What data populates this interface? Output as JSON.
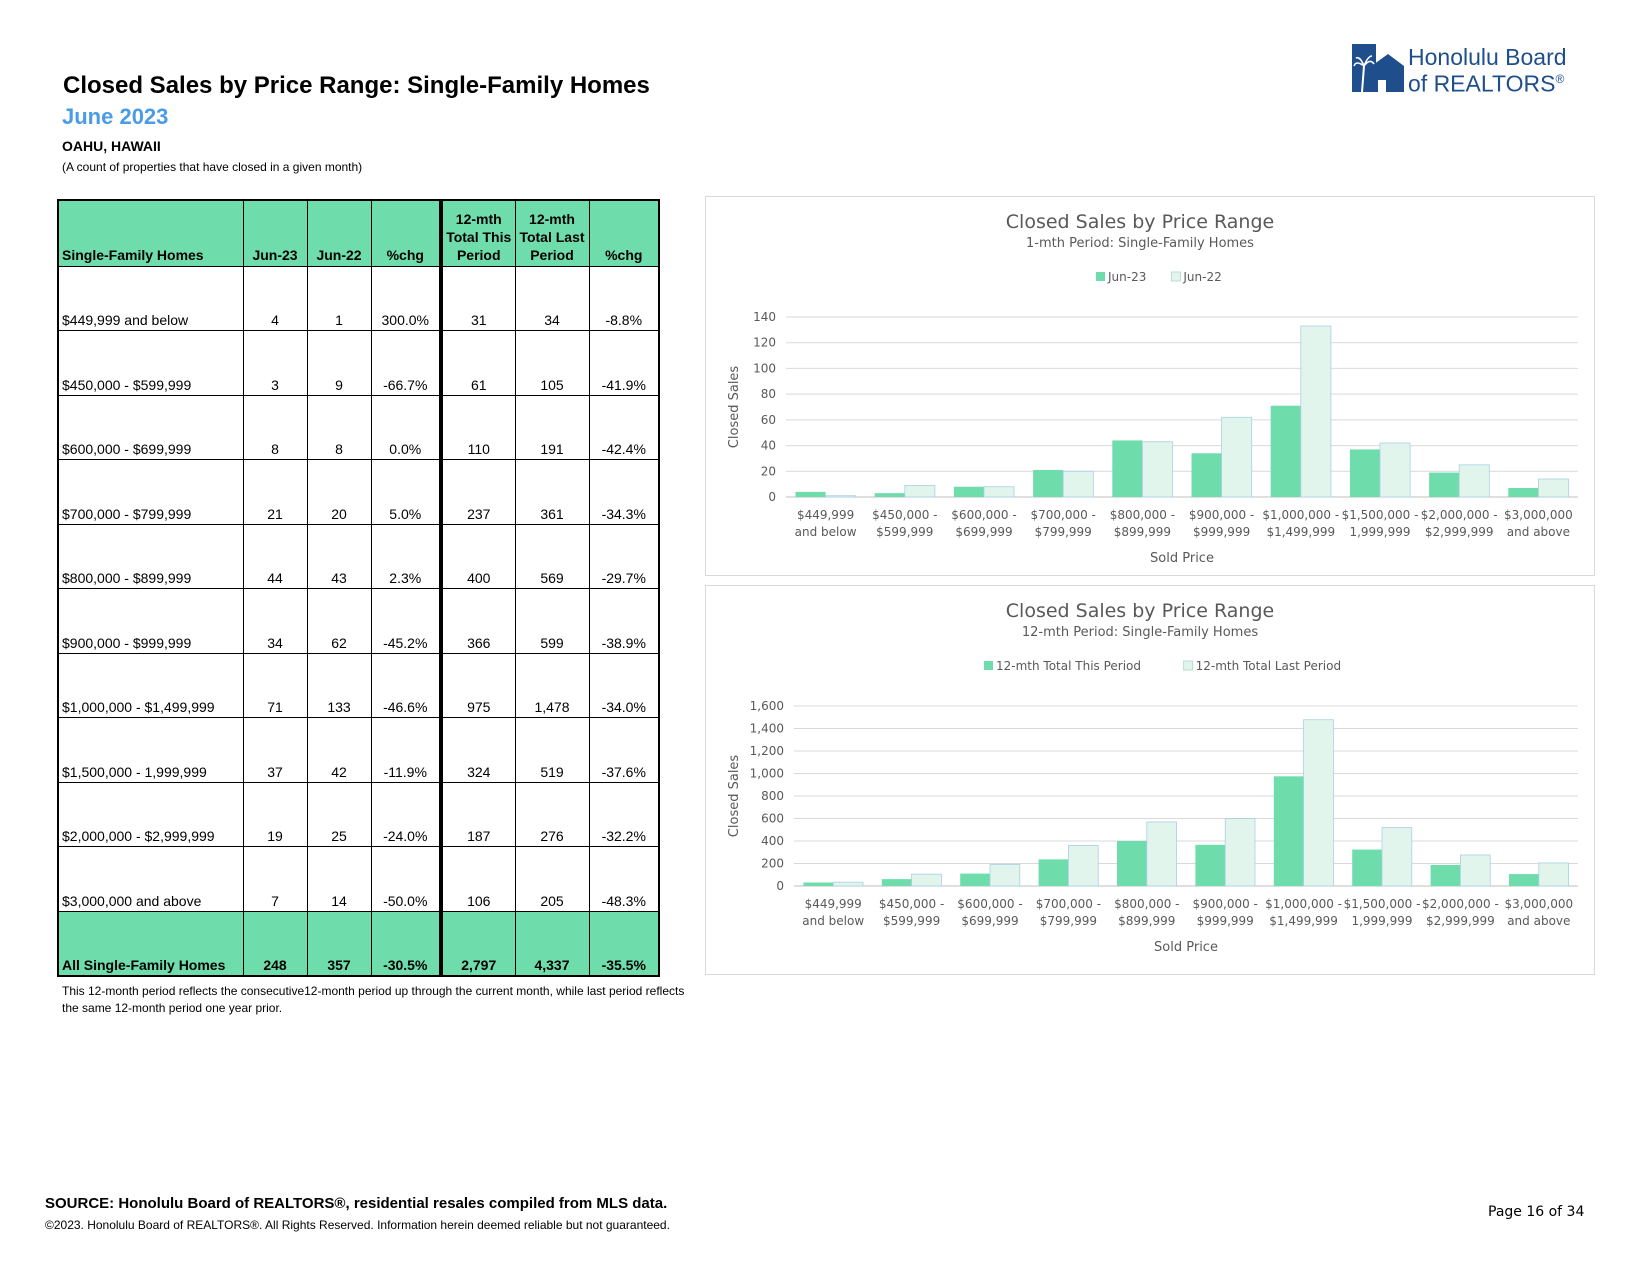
{
  "header": {
    "title": "Closed Sales by Price Range: Single-Family Homes",
    "month": "June 2023",
    "region": "OAHU, HAWAII",
    "note": "(A count of properties that have closed in a given month)"
  },
  "logo": {
    "line1": "Honolulu Board",
    "line2": "of REALTORS",
    "mark": "®"
  },
  "table": {
    "headers": [
      "Single-Family Homes",
      "Jun-23",
      "Jun-22",
      "%chg",
      "12-mth Total This Period",
      "12-mth Total Last Period",
      "%chg"
    ],
    "header_lines": [
      [
        "Single-Family Homes"
      ],
      [
        "Jun-23"
      ],
      [
        "Jun-22"
      ],
      [
        "%chg"
      ],
      [
        "12-mth",
        "Total This",
        "Period"
      ],
      [
        "12-mth",
        "Total Last",
        "Period"
      ],
      [
        "%chg"
      ]
    ],
    "rows": [
      [
        "$449,999 and below",
        "4",
        "1",
        "300.0%",
        "31",
        "34",
        "-8.8%"
      ],
      [
        "$450,000 - $599,999",
        "3",
        "9",
        "-66.7%",
        "61",
        "105",
        "-41.9%"
      ],
      [
        "$600,000 - $699,999",
        "8",
        "8",
        "0.0%",
        "110",
        "191",
        "-42.4%"
      ],
      [
        "$700,000 - $799,999",
        "21",
        "20",
        "5.0%",
        "237",
        "361",
        "-34.3%"
      ],
      [
        "$800,000 - $899,999",
        "44",
        "43",
        "2.3%",
        "400",
        "569",
        "-29.7%"
      ],
      [
        "$900,000 - $999,999",
        "34",
        "62",
        "-45.2%",
        "366",
        "599",
        "-38.9%"
      ],
      [
        "$1,000,000 - $1,499,999",
        "71",
        "133",
        "-46.6%",
        "975",
        "1,478",
        "-34.0%"
      ],
      [
        "$1,500,000 - 1,999,999",
        "37",
        "42",
        "-11.9%",
        "324",
        "519",
        "-37.6%"
      ],
      [
        "$2,000,000 - $2,999,999",
        "19",
        "25",
        "-24.0%",
        "187",
        "276",
        "-32.2%"
      ],
      [
        "$3,000,000 and above",
        "7",
        "14",
        "-50.0%",
        "106",
        "205",
        "-48.3%"
      ]
    ],
    "total": [
      "All Single-Family Homes",
      "248",
      "357",
      "-30.5%",
      "2,797",
      "4,337",
      "-35.5%"
    ]
  },
  "footnote": "This 12-month period reflects the consecutive12-month period up through the current month, while last period reflects the same 12-month period one year prior.",
  "chart_data": [
    {
      "type": "bar",
      "title": "Closed Sales by Price Range",
      "subtitle": "1-mth Period: Single-Family Homes",
      "xlabel": "Sold Price",
      "ylabel": "Closed Sales",
      "ylim": [
        0,
        140
      ],
      "yticks": [
        0,
        20,
        40,
        60,
        80,
        100,
        120,
        140
      ],
      "ytick_labels": [
        "0",
        "20",
        "40",
        "60",
        "80",
        "100",
        "120",
        "140"
      ],
      "legend": "top",
      "grid": true,
      "categories": [
        [
          "$449,999",
          "and below"
        ],
        [
          "$450,000 -",
          "$599,999"
        ],
        [
          "$600,000 -",
          "$699,999"
        ],
        [
          "$700,000 -",
          "$799,999"
        ],
        [
          "$800,000 -",
          "$899,999"
        ],
        [
          "$900,000 -",
          "$999,999"
        ],
        [
          "$1,000,000 -",
          "$1,499,999"
        ],
        [
          "$1,500,000 -",
          "1,999,999"
        ],
        [
          "$2,000,000 -",
          "$2,999,999"
        ],
        [
          "$3,000,000",
          "and above"
        ]
      ],
      "series": [
        {
          "name": "Jun-23",
          "color": "#6fdcac",
          "values": [
            4,
            3,
            8,
            21,
            44,
            34,
            71,
            37,
            19,
            7
          ]
        },
        {
          "name": "Jun-22",
          "color": "#e2f5ec",
          "values": [
            1,
            9,
            8,
            20,
            43,
            62,
            133,
            42,
            25,
            14
          ]
        }
      ]
    },
    {
      "type": "bar",
      "title": "Closed Sales by Price Range",
      "subtitle": "12-mth Period: Single-Family Homes",
      "xlabel": "Sold Price",
      "ylabel": "Closed Sales",
      "ylim": [
        0,
        1600
      ],
      "yticks": [
        0,
        200,
        400,
        600,
        800,
        1000,
        1200,
        1400,
        1600
      ],
      "ytick_labels": [
        "0",
        "200",
        "400",
        "600",
        "800",
        "1,000",
        "1,200",
        "1,400",
        "1,600"
      ],
      "legend": "top",
      "grid": true,
      "categories": [
        [
          "$449,999",
          "and below"
        ],
        [
          "$450,000 -",
          "$599,999"
        ],
        [
          "$600,000 -",
          "$699,999"
        ],
        [
          "$700,000 -",
          "$799,999"
        ],
        [
          "$800,000 -",
          "$899,999"
        ],
        [
          "$900,000 -",
          "$999,999"
        ],
        [
          "$1,000,000 -",
          "$1,499,999"
        ],
        [
          "$1,500,000 -",
          "1,999,999"
        ],
        [
          "$2,000,000 -",
          "$2,999,999"
        ],
        [
          "$3,000,000",
          "and above"
        ]
      ],
      "series": [
        {
          "name": "12-mth Total This Period",
          "color": "#6fdcac",
          "values": [
            31,
            61,
            110,
            237,
            400,
            366,
            975,
            324,
            187,
            106
          ]
        },
        {
          "name": "12-mth Total Last Period",
          "color": "#e2f5ec",
          "values": [
            34,
            105,
            191,
            361,
            569,
            599,
            1478,
            519,
            276,
            205
          ]
        }
      ]
    }
  ],
  "footer": {
    "source": "SOURCE: Honolulu Board of REALTORS®, residential resales compiled from MLS data.",
    "copyright": "©2023. Honolulu Board of REALTORS®. All Rights Reserved. Information herein deemed reliable but not guaranteed.",
    "page": "Page 16 of 34"
  }
}
